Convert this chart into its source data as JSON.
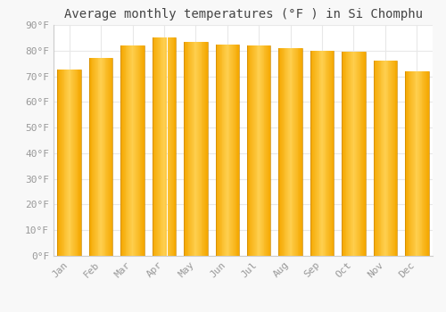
{
  "title": "Average monthly temperatures (°F ) in Si Chomphu",
  "months": [
    "Jan",
    "Feb",
    "Mar",
    "Apr",
    "May",
    "Jun",
    "Jul",
    "Aug",
    "Sep",
    "Oct",
    "Nov",
    "Dec"
  ],
  "values": [
    72.5,
    77,
    82,
    85,
    83.5,
    82.5,
    82,
    81,
    80,
    79.5,
    76,
    72
  ],
  "bar_color_left": "#F5A800",
  "bar_color_center": "#FFD050",
  "bar_color_right": "#F5A800",
  "background_color": "#F8F8F8",
  "plot_bg_color": "#FFFFFF",
  "grid_color": "#E8E8E8",
  "ytick_labels": [
    "0°F",
    "10°F",
    "20°F",
    "30°F",
    "40°F",
    "50°F",
    "60°F",
    "70°F",
    "80°F",
    "90°F"
  ],
  "ytick_values": [
    0,
    10,
    20,
    30,
    40,
    50,
    60,
    70,
    80,
    90
  ],
  "ylim": [
    0,
    90
  ],
  "title_fontsize": 10,
  "tick_fontsize": 8,
  "tick_color": "#999999",
  "font_family": "monospace",
  "bar_width": 0.75
}
